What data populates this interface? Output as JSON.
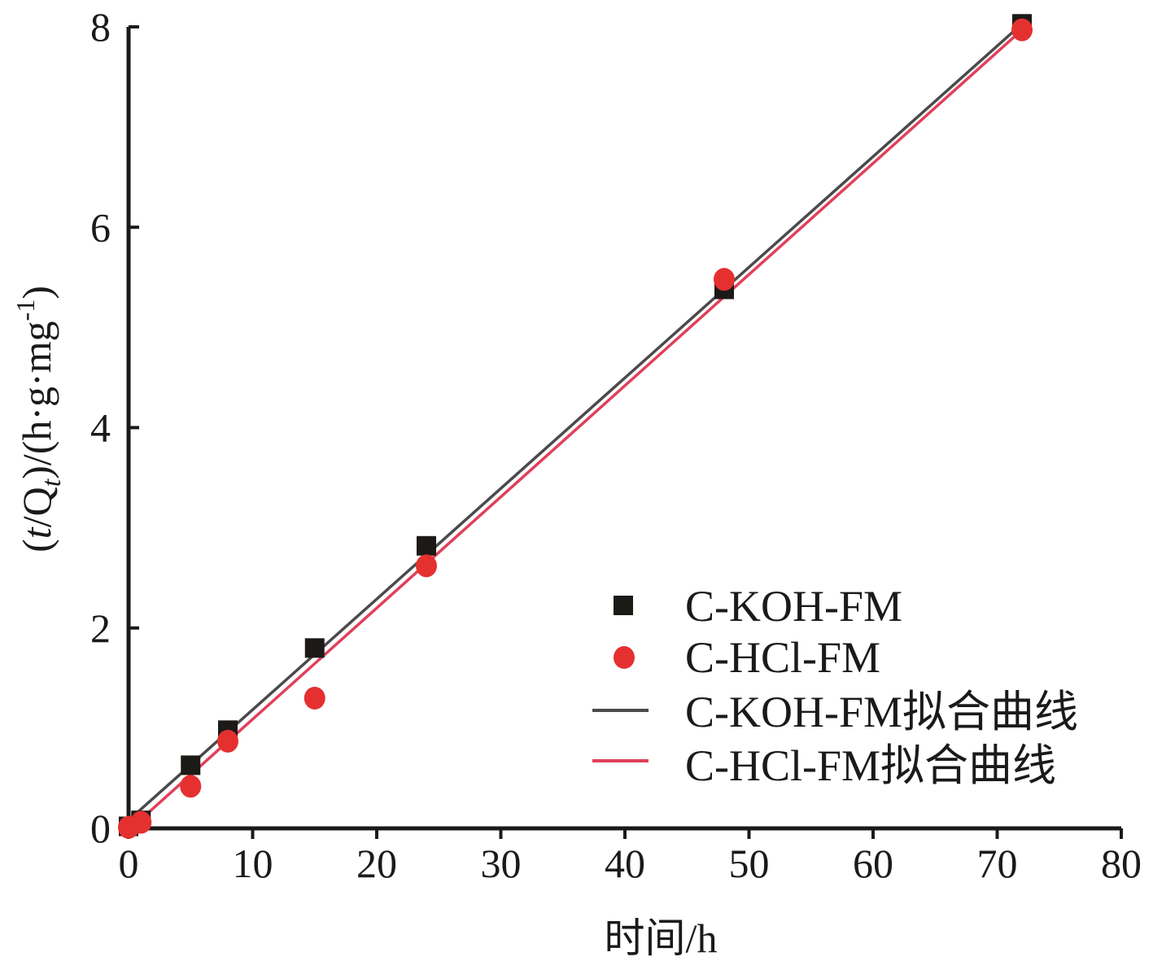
{
  "chart_data": {
    "type": "scatter",
    "xlabel": "时间/h",
    "ylabel_parts": {
      "open": "(",
      "t": "t",
      "slash_q": "/Q",
      "sub_t": "t",
      "close": ")/(h·g·mg",
      "sup": "-1",
      "end": ")"
    },
    "xlim": [
      0,
      80
    ],
    "ylim": [
      0,
      8
    ],
    "xticks": [
      0,
      10,
      20,
      30,
      40,
      50,
      60,
      70,
      80
    ],
    "yticks": [
      0,
      2,
      4,
      6,
      8
    ],
    "grid": false,
    "legend_position": "bottom-right",
    "series": [
      {
        "name": "C-KOH-FM",
        "marker": "square",
        "color": "#1c1a17",
        "x": [
          0,
          1,
          5,
          8,
          15,
          24,
          48,
          72
        ],
        "y": [
          0.02,
          0.08,
          0.63,
          0.98,
          1.8,
          2.82,
          5.38,
          8.03
        ]
      },
      {
        "name": "C-HCl-FM",
        "marker": "circle",
        "color": "#e53030",
        "x": [
          0,
          1,
          5,
          8,
          15,
          24,
          48,
          72
        ],
        "y": [
          0.01,
          0.06,
          0.42,
          0.87,
          1.3,
          2.62,
          5.48,
          7.97
        ]
      },
      {
        "name": "C-KOH-FM拟合曲线",
        "kind": "line",
        "color": "#4a4a4a",
        "x": [
          0,
          72
        ],
        "y": [
          0.08,
          8.03
        ]
      },
      {
        "name": "C-HCl-FM拟合曲线",
        "kind": "line",
        "color": "#e0405a",
        "x": [
          0,
          72
        ],
        "y": [
          -0.02,
          7.97
        ]
      }
    ]
  }
}
